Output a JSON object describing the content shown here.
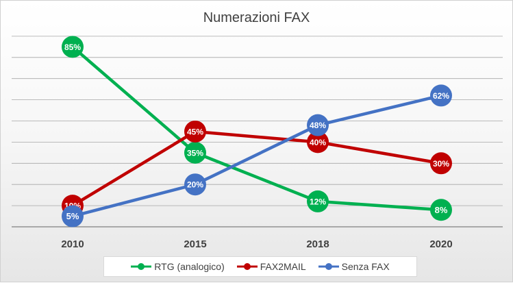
{
  "chart_data": {
    "type": "line",
    "title": "Numerazioni FAX",
    "categories": [
      "2010",
      "2015",
      "2018",
      "2020"
    ],
    "ylim": [
      0,
      100
    ],
    "grid": true,
    "legend_position": "bottom",
    "series": [
      {
        "name": "RTG (analogico)",
        "values": [
          85,
          35,
          12,
          8
        ],
        "labels": [
          "85%",
          "35%",
          "12%",
          "8%"
        ],
        "color": "#00b050"
      },
      {
        "name": "FAX2MAIL",
        "values": [
          10,
          45,
          40,
          30
        ],
        "labels": [
          "10%",
          "45%",
          "40%",
          "30%"
        ],
        "color": "#c00000"
      },
      {
        "name": "Senza FAX",
        "values": [
          5,
          20,
          48,
          62
        ],
        "labels": [
          "5%",
          "20%",
          "48%",
          "62%"
        ],
        "color": "#4472c4"
      }
    ]
  }
}
